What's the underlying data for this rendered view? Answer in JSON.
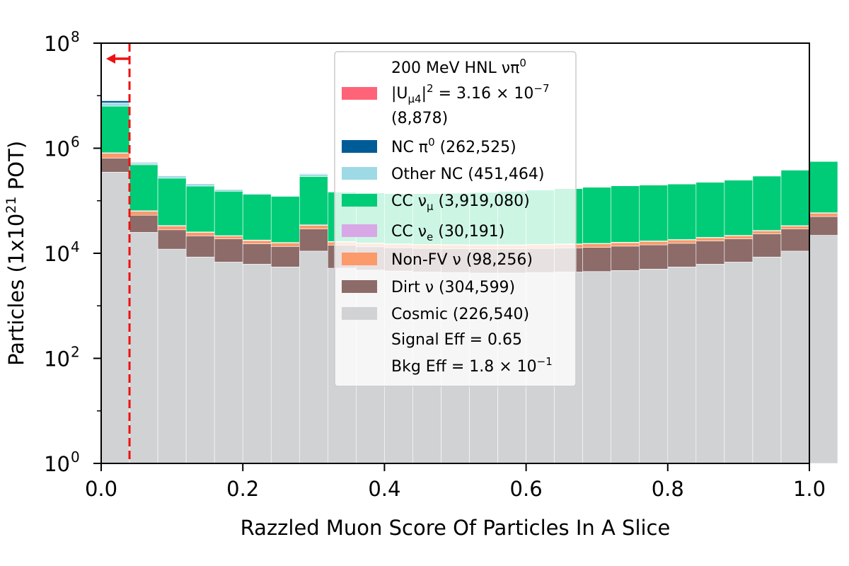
{
  "chart_data": {
    "type": "bar",
    "stacked": true,
    "xlabel": "Razzled Muon Score Of Particles In A Slice",
    "ylabel_prefix": "Particles (1x10",
    "ylabel_exp": "21",
    "ylabel_suffix": " POT)",
    "ylim": [
      1,
      100000000
    ],
    "yscale": "log",
    "xlim": [
      0,
      1
    ],
    "bin_width": 0.04,
    "x_ticks": [
      "0.0",
      "0.2",
      "0.4",
      "0.6",
      "0.8",
      "1.0"
    ],
    "x_tick_values": [
      0,
      0.2,
      0.4,
      0.6,
      0.8,
      1.0
    ],
    "y_ticks": [
      {
        "base": "10",
        "exp": "0",
        "value": 1
      },
      {
        "base": "10",
        "exp": "2",
        "value": 100
      },
      {
        "base": "10",
        "exp": "4",
        "value": 10000
      },
      {
        "base": "10",
        "exp": "6",
        "value": 1000000
      },
      {
        "base": "10",
        "exp": "8",
        "value": 100000000
      }
    ],
    "cut_line": {
      "x": 0.04,
      "color": "#ee1111"
    },
    "legend_placement": "top-center",
    "series": [
      {
        "name": "Cosmic",
        "count": "(226,540)",
        "color": "#d1d2d4",
        "values": [
          350000,
          25000,
          12000,
          8500,
          6800,
          6200,
          5500,
          11000,
          5200,
          4800,
          4600,
          4400,
          4300,
          4200,
          4200,
          4300,
          4400,
          4500,
          4700,
          5000,
          5500,
          6200,
          6800,
          8500,
          11000,
          22000
        ]
      },
      {
        "name": "Dirt ν",
        "count": "(304,599)",
        "color": "#8c6b69",
        "values": [
          300000,
          28000,
          16000,
          13000,
          12000,
          9000,
          8000,
          18000,
          9000,
          8500,
          8200,
          8000,
          8000,
          8000,
          8000,
          8100,
          8300,
          8500,
          9000,
          9500,
          10000,
          11000,
          12000,
          15000,
          18000,
          28000
        ]
      },
      {
        "name": "Non-FV ν",
        "count": "(98,256)",
        "color": "#fb9a6a",
        "values": [
          150000,
          10000,
          5000,
          3500,
          2500,
          2300,
          2200,
          5000,
          2200,
          2100,
          2000,
          2000,
          2000,
          2000,
          2000,
          2000,
          2100,
          2100,
          2200,
          2300,
          2400,
          2500,
          2700,
          3200,
          4000,
          8000
        ]
      },
      {
        "name": "CC νe",
        "count": "(30,191)",
        "color": "#d8a8e6",
        "values": [
          20000,
          1500,
          800,
          500,
          400,
          380,
          360,
          800,
          360,
          350,
          340,
          330,
          330,
          330,
          330,
          330,
          340,
          350,
          360,
          380,
          400,
          420,
          450,
          500,
          600,
          1200
        ]
      },
      {
        "name": "CC νμ",
        "count": "(3,919,080)",
        "color": "#00cc77",
        "values": [
          5500000,
          420000,
          235000,
          165000,
          130000,
          115000,
          105000,
          255000,
          130000,
          125000,
          122000,
          122000,
          125000,
          130000,
          137000,
          145000,
          155000,
          165000,
          176000,
          182000,
          190000,
          205000,
          225000,
          268000,
          350000,
          500000
        ]
      },
      {
        "name": "Other NC",
        "count": "(451,464)",
        "color": "#9edae5",
        "values": [
          1000000,
          40000,
          30000,
          20000,
          12000,
          5000,
          4000,
          30000,
          4000,
          3000,
          2500,
          2000,
          2000,
          2000,
          2000,
          2000,
          2000,
          2000,
          2000,
          2000,
          2000,
          2000,
          2000,
          2000,
          2000,
          3000
        ]
      },
      {
        "name": "NC π⁰",
        "count": "(262,525)",
        "color": "#005c97",
        "values": [
          700000,
          15000,
          4000,
          2500,
          1500,
          800,
          600,
          8000,
          600,
          500,
          400,
          400,
          400,
          400,
          400,
          400,
          400,
          400,
          400,
          400,
          400,
          400,
          400,
          400,
          400,
          600
        ]
      },
      {
        "name": "200 MeV HNL νπ⁰",
        "count": "(8,878)",
        "color": "#ff6377",
        "values": [
          5770,
          400,
          200,
          150,
          120,
          110,
          100,
          250,
          100,
          100,
          100,
          100,
          100,
          100,
          100,
          100,
          100,
          100,
          100,
          100,
          100,
          100,
          100,
          110,
          130,
          300
        ]
      }
    ],
    "legend": {
      "signal_line1": "200 MeV HNL νπ",
      "signal_line1_sup": "0",
      "signal_line2_a": "|U",
      "signal_line2_sub": "μ4",
      "signal_line2_b": "|",
      "signal_line2_sup": "2",
      "signal_line2_c": " = 3.16 × 10",
      "signal_line2_exp": "−7",
      "signal_line3": " (8,878)",
      "entries": [
        {
          "text": "NC π",
          "sup": "0",
          "after": " (262,525)",
          "color": "#005c97"
        },
        {
          "text": "Other NC (451,464)",
          "sup": "",
          "after": "",
          "color": "#9edae5"
        },
        {
          "text": "CC ν",
          "sub": "μ",
          "after": " (3,919,080)",
          "color": "#00cc77"
        },
        {
          "text": "CC ν",
          "sub": "e",
          "after": " (30,191)",
          "color": "#d8a8e6"
        },
        {
          "text": "Non-FV ν (98,256)",
          "sup": "",
          "after": "",
          "color": "#fb9a6a"
        },
        {
          "text": "Dirt ν (304,599)",
          "sup": "",
          "after": "",
          "color": "#8c6b69"
        },
        {
          "text": "Cosmic (226,540)",
          "sup": "",
          "after": "",
          "color": "#d1d2d4"
        }
      ],
      "signal_eff": "Signal Eff = 0.65",
      "bkg_eff_a": "Bkg Eff = 1.8 × 10",
      "bkg_eff_exp": "−1"
    }
  }
}
